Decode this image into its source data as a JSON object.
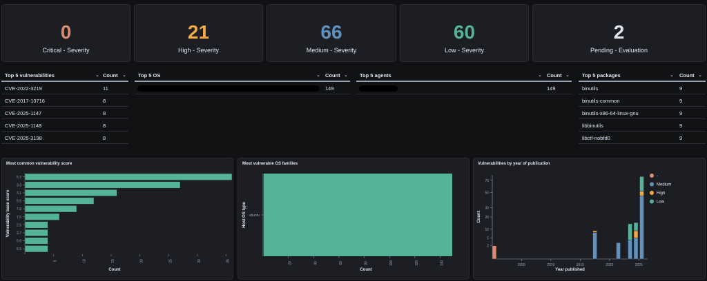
{
  "kpis": [
    {
      "value": "0",
      "label": "Critical - Severity",
      "color": "#da8b74"
    },
    {
      "value": "21",
      "label": "High - Severity",
      "color": "#f3a844"
    },
    {
      "value": "66",
      "label": "Medium - Severity",
      "color": "#6092c0"
    },
    {
      "value": "60",
      "label": "Low - Severity",
      "color": "#54b399"
    },
    {
      "value": "2",
      "label": "Pending - Evaluation",
      "color": "#dfe5ef"
    }
  ],
  "top_vulns": {
    "title": "Top 5 vulnerabilities",
    "count_label": "Count",
    "rows": [
      {
        "name": "CVE-2022-3219",
        "count": "11"
      },
      {
        "name": "CVE-2017-13716",
        "count": "8"
      },
      {
        "name": "CVE-2025-1147",
        "count": "8"
      },
      {
        "name": "CVE-2025-1148",
        "count": "8"
      },
      {
        "name": "CVE-2025-3198",
        "count": "8"
      }
    ]
  },
  "top_os": {
    "title": "Top 5 OS",
    "count_label": "Count",
    "rows": [
      {
        "count": "149"
      }
    ]
  },
  "top_agents": {
    "title": "Top 5 agents",
    "count_label": "Count",
    "rows": [
      {
        "count": "149"
      }
    ]
  },
  "top_packages": {
    "title": "Top 5 packages",
    "count_label": "Count",
    "rows": [
      {
        "name": "binutils",
        "count": "9"
      },
      {
        "name": "binutils-common",
        "count": "9"
      },
      {
        "name": "binutils-x86-64-linux-gnu",
        "count": "9"
      },
      {
        "name": "libbinutils",
        "count": "9"
      },
      {
        "name": "libctf-nobfd0",
        "count": "9"
      }
    ]
  },
  "chart_data": [
    {
      "type": "bar",
      "title": "Most common vulnerability score",
      "orientation": "horizontal",
      "categories": [
        "5.3",
        "3.3",
        "3.1",
        "5.5",
        "7.8",
        "7.5",
        "2.5",
        "3.7",
        "5.6",
        "6.5"
      ],
      "values": [
        36,
        27,
        16,
        12,
        9,
        6,
        4,
        4,
        4,
        4
      ],
      "xlabel": "Count",
      "ylabel": "Vulnerability base score",
      "xlim": [
        0,
        36
      ],
      "x_ticks": [
        "5",
        "10",
        "15",
        "20",
        "25",
        "30",
        "35"
      ],
      "color": "#54b399"
    },
    {
      "type": "bar",
      "title": "Most vulnerable OS families",
      "orientation": "horizontal",
      "categories": [
        "ubuntu"
      ],
      "values": [
        149
      ],
      "xlabel": "Count",
      "ylabel": "Host OS type",
      "xlim": [
        0,
        155
      ],
      "x_ticks": [
        "20",
        "40",
        "60",
        "80",
        "100",
        "120",
        "140"
      ],
      "color": "#54b399"
    },
    {
      "type": "bar",
      "title": "Vulnerabilities by year of publication",
      "stacked": true,
      "xlabel": "Year published",
      "ylabel": "Count",
      "x_ticks": [
        "2005",
        "2010",
        "2015",
        "2020",
        "2025"
      ],
      "y_ticks": [
        "2",
        "5",
        "10",
        "20",
        "30",
        "50",
        "70"
      ],
      "y_scale": "sqrt",
      "legend": {
        "position": "top-right",
        "items": [
          {
            "name": "-",
            "color": "#da8b74"
          },
          {
            "name": "Medium",
            "color": "#6092c0"
          },
          {
            "name": "High",
            "color": "#f3a844"
          },
          {
            "name": "Low",
            "color": "#54b399"
          }
        ]
      },
      "bars": [
        {
          "year": 2000,
          "segments": [
            {
              "series": "-",
              "value": 2
            }
          ]
        },
        {
          "year": 2017,
          "segments": [
            {
              "series": "Medium",
              "value": 8
            },
            {
              "series": "High",
              "value": 1
            }
          ]
        },
        {
          "year": 2021,
          "segments": [
            {
              "series": "Medium",
              "value": 3
            }
          ]
        },
        {
          "year": 2023,
          "segments": [
            {
              "series": "Medium",
              "value": 4
            },
            {
              "series": "Low",
              "value": 10
            }
          ]
        },
        {
          "year": 2024,
          "segments": [
            {
              "series": "Medium",
              "value": 5
            },
            {
              "series": "High",
              "value": 4
            },
            {
              "series": "Low",
              "value": 6
            }
          ]
        },
        {
          "year": 2025,
          "segments": [
            {
              "series": "Medium",
              "value": 45
            },
            {
              "series": "High",
              "value": 7
            },
            {
              "series": "Low",
              "value": 25
            }
          ]
        }
      ]
    }
  ]
}
